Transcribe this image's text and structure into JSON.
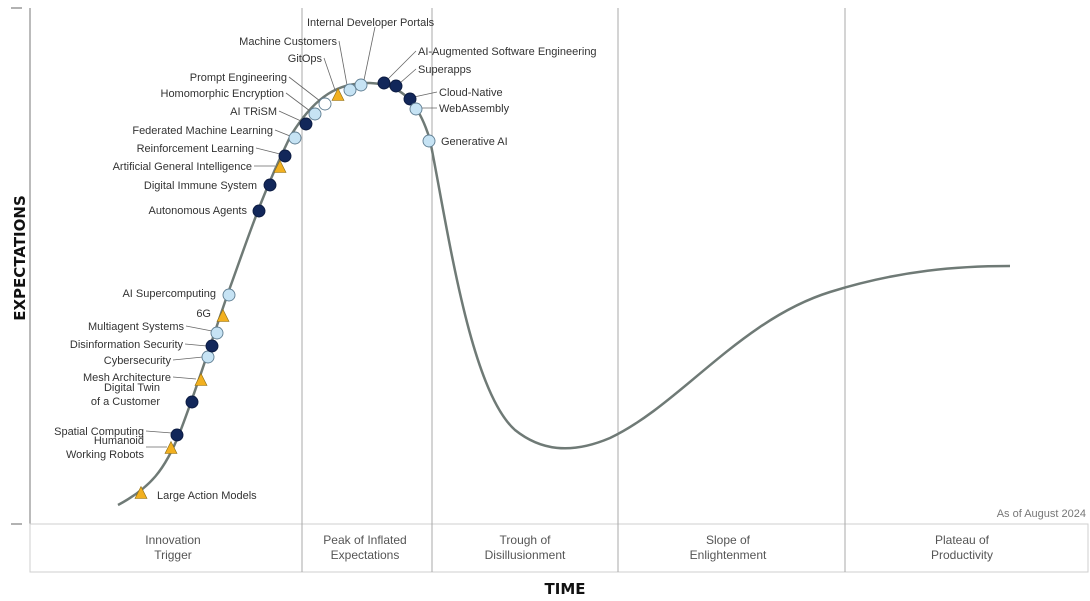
{
  "chart_data": {
    "type": "scatter",
    "xlabel": "TIME",
    "ylabel": "EXPECTATIONS",
    "as_of": "As of August 2024",
    "phases": [
      [
        "Innovation",
        "Trigger"
      ],
      [
        "Peak of Inflated",
        "Expectations"
      ],
      [
        "Trough of",
        "Disillusionment"
      ],
      [
        "Slope of",
        "Enlightenment"
      ],
      [
        "Plateau of",
        "Productivity"
      ]
    ],
    "marker_colors": {
      "transformational": "#12275a",
      "high": "#c6e3f4",
      "moderate": "#ffffff",
      "low": "#f2b01f"
    },
    "technologies": [
      {
        "name": "Large Action Models",
        "marker": "low"
      },
      {
        "name": "Humanoid Working Robots",
        "marker": "low"
      },
      {
        "name": "Spatial Computing",
        "marker": "transformational"
      },
      {
        "name": "Digital Twin of a Customer",
        "marker": "transformational"
      },
      {
        "name": "Mesh Architecture",
        "marker": "low"
      },
      {
        "name": "Cybersecurity",
        "marker": "high"
      },
      {
        "name": "Disinformation Security",
        "marker": "transformational"
      },
      {
        "name": "Multiagent Systems",
        "marker": "high"
      },
      {
        "name": "6G",
        "marker": "low"
      },
      {
        "name": "AI Supercomputing",
        "marker": "high"
      },
      {
        "name": "Autonomous Agents",
        "marker": "transformational"
      },
      {
        "name": "Digital Immune System",
        "marker": "transformational"
      },
      {
        "name": "Artificial General Intelligence",
        "marker": "low"
      },
      {
        "name": "Reinforcement Learning",
        "marker": "transformational"
      },
      {
        "name": "Federated Machine Learning",
        "marker": "high"
      },
      {
        "name": "AI TRiSM",
        "marker": "transformational"
      },
      {
        "name": "Homomorphic Encryption",
        "marker": "high"
      },
      {
        "name": "Prompt Engineering",
        "marker": "moderate"
      },
      {
        "name": "GitOps",
        "marker": "low"
      },
      {
        "name": "Machine Customers",
        "marker": "high"
      },
      {
        "name": "Internal Developer Portals",
        "marker": "high"
      },
      {
        "name": "AI-Augmented Software Engineering",
        "marker": "transformational"
      },
      {
        "name": "Superapps",
        "marker": "transformational"
      },
      {
        "name": "Cloud-Native",
        "marker": "transformational"
      },
      {
        "name": "WebAssembly",
        "marker": "high"
      },
      {
        "name": "Generative AI",
        "marker": "high"
      }
    ],
    "label_lines": {
      "Humanoid Working Robots": [
        "Humanoid",
        "Working Robots"
      ],
      "Digital Twin of a Customer": [
        "Digital Twin",
        "of a Customer"
      ]
    },
    "grid": false
  }
}
